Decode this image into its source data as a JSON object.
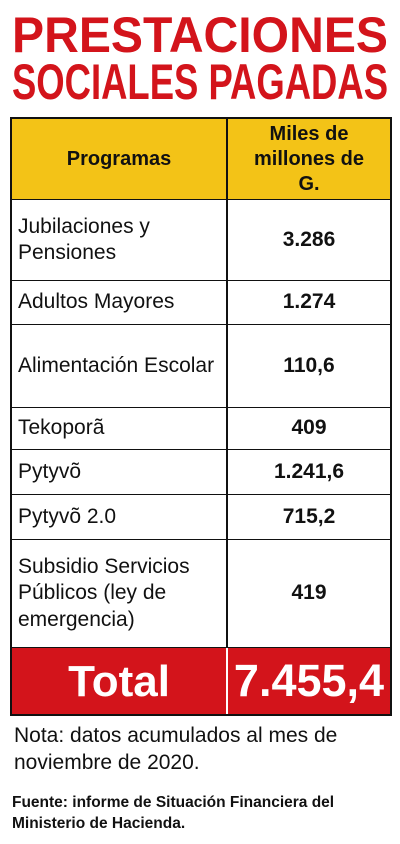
{
  "header": {
    "title_lines": [
      "PRESTACIONES",
      "SOCIALES PAGADAS"
    ]
  },
  "table": {
    "columns": [
      "Programas",
      "Miles de millones de G."
    ],
    "rows": [
      [
        "Jubilaciones y Pensiones",
        "3.286"
      ],
      [
        "Adultos Mayores",
        "1.274"
      ],
      [
        "Alimentación Escolar",
        "110,6"
      ],
      [
        "Tekoporã",
        "409"
      ],
      [
        "Pytyvõ",
        "1.241,6"
      ],
      [
        "Pytyvõ 2.0",
        "715,2"
      ],
      [
        "Subsidio Servicios Públicos (ley de emergencia)",
        "419"
      ]
    ],
    "total": [
      "Total",
      "7.455,4"
    ]
  },
  "note": "Nota: datos acumulados al mes de noviembre de 2020.",
  "source": "Fuente: informe de Situación Financiera del Ministerio de Hacienda."
}
